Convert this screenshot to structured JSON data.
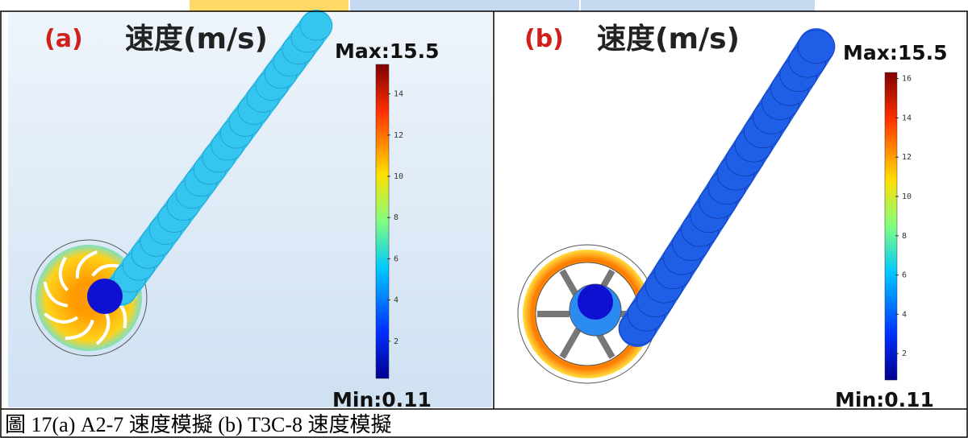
{
  "panels": [
    {
      "tag": "(a)",
      "quantity": "速度(m/s)",
      "max": "Max:15.5",
      "min": "Min:0.11",
      "ticks": [
        2,
        4,
        6,
        8,
        10,
        12,
        14
      ]
    },
    {
      "tag": "(b)",
      "quantity": "速度(m/s)",
      "max": "Max:15.5",
      "min": "Min:0.11",
      "ticks": [
        2,
        4,
        6,
        8,
        10,
        12,
        14,
        16
      ]
    }
  ],
  "caption": "圖 17(a) A2-7 速度模擬  (b) T3C-8 速度模擬"
}
